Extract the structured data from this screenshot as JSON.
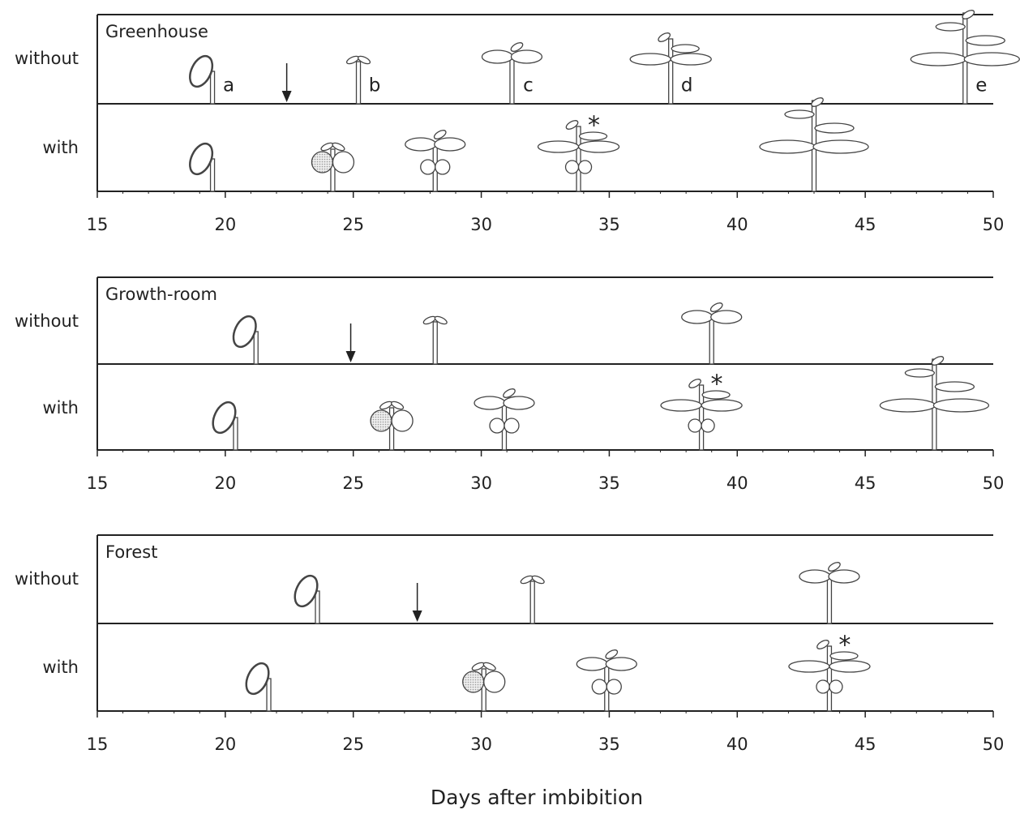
{
  "x_label": "Days after imbibition",
  "chart_data": [
    {
      "type": "stage-timeline",
      "title": "Greenhouse",
      "xlim": [
        15,
        50
      ],
      "xticks": [
        15,
        20,
        25,
        30,
        35,
        40,
        45,
        50
      ],
      "rows": [
        {
          "label": "without",
          "x": [
            19.5,
            25.2,
            31.2,
            37.4,
            48.9
          ],
          "stage_labels": [
            "a",
            "b",
            "c",
            "d",
            "e"
          ]
        },
        {
          "label": "with",
          "x": [
            19.5,
            24.2,
            28.2,
            33.8,
            43.0
          ]
        }
      ],
      "arrow_x": 22.4,
      "annotations": [
        {
          "text": "*",
          "x": 34.4
        }
      ]
    },
    {
      "type": "stage-timeline",
      "title": "Growth-room",
      "xlim": [
        15,
        50
      ],
      "xticks": [
        15,
        20,
        25,
        30,
        35,
        40,
        45,
        50
      ],
      "rows": [
        {
          "label": "without",
          "x": [
            21.2,
            28.2,
            39.0
          ]
        },
        {
          "label": "with",
          "x": [
            20.4,
            26.5,
            30.9,
            38.6,
            47.7
          ]
        }
      ],
      "arrow_x": 24.9,
      "annotations": [
        {
          "text": "*",
          "x": 39.2
        }
      ]
    },
    {
      "type": "stage-timeline",
      "title": "Forest",
      "xlim": [
        15,
        50
      ],
      "xticks": [
        15,
        20,
        25,
        30,
        35,
        40,
        45,
        50
      ],
      "rows": [
        {
          "label": "without",
          "x": [
            23.6,
            32.0,
            43.6
          ]
        },
        {
          "label": "with",
          "x": [
            21.7,
            30.1,
            34.9,
            43.6
          ]
        }
      ],
      "arrow_x": 27.5,
      "annotations": [
        {
          "text": "*",
          "x": 44.2
        }
      ]
    }
  ]
}
